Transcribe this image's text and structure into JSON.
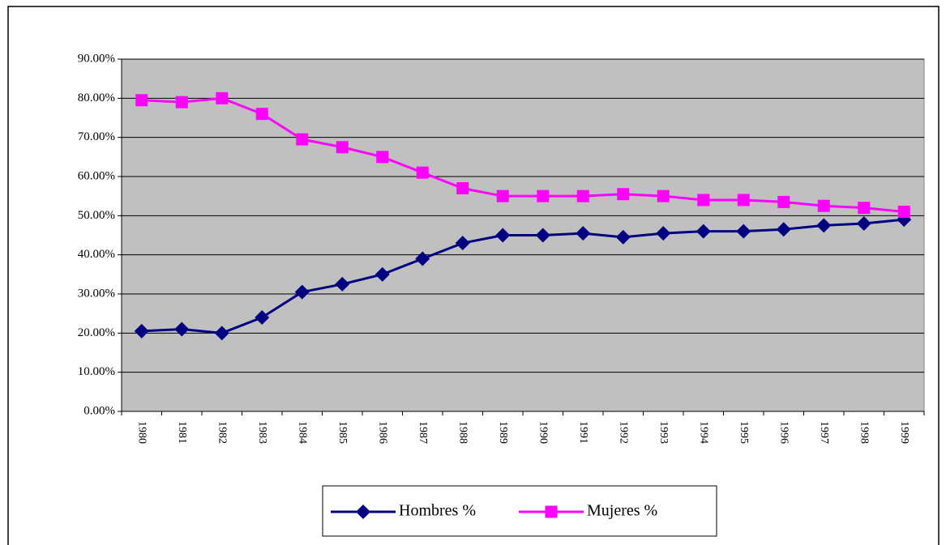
{
  "chart_data": {
    "type": "line",
    "categories": [
      "1980",
      "1981",
      "1982",
      "1983",
      "1984",
      "1985",
      "1986",
      "1987",
      "1988",
      "1989",
      "1990",
      "1991",
      "1992",
      "1993",
      "1994",
      "1995",
      "1996",
      "1997",
      "1998",
      "1999"
    ],
    "series": [
      {
        "name": "Hombres %",
        "color": "#000080",
        "marker": "diamond",
        "values": [
          20.5,
          21,
          20,
          24,
          30.5,
          32.5,
          35,
          39,
          43,
          45,
          45,
          45.5,
          44.5,
          45.5,
          46,
          46,
          46.5,
          47.5,
          48,
          49
        ]
      },
      {
        "name": "Mujeres %",
        "color": "#ff00ff",
        "marker": "square",
        "values": [
          79.5,
          79,
          80,
          76,
          69.5,
          67.5,
          65,
          61,
          57,
          55,
          55,
          55,
          55.5,
          55,
          54,
          54,
          53.5,
          52.5,
          52,
          51
        ]
      }
    ],
    "ylim": [
      0,
      90
    ],
    "yticks": [
      {
        "value": 0,
        "label": "0.00%"
      },
      {
        "value": 10,
        "label": "10.00%"
      },
      {
        "value": 20,
        "label": "20.00%"
      },
      {
        "value": 30,
        "label": "30.00%"
      },
      {
        "value": 40,
        "label": "40.00%"
      },
      {
        "value": 50,
        "label": "50.00%"
      },
      {
        "value": 60,
        "label": "60.00%"
      },
      {
        "value": 70,
        "label": "70.00%"
      },
      {
        "value": 80,
        "label": "80.00%"
      },
      {
        "value": 90,
        "label": "90.00%"
      }
    ],
    "grid": true,
    "plot_background": "#c0c0c0",
    "legend": "bottom"
  }
}
